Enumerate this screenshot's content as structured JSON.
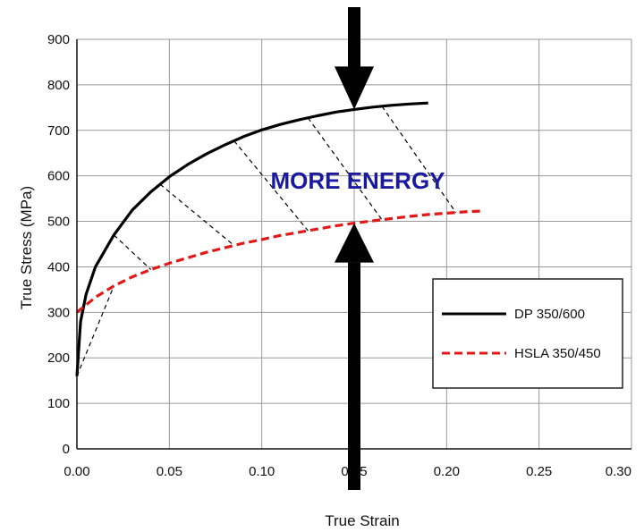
{
  "chart_data": {
    "type": "line",
    "xlabel": "True Strain",
    "ylabel": "True Stress (MPa)",
    "xlim": [
      0,
      0.3
    ],
    "ylim": [
      0,
      900
    ],
    "x_ticks": [
      "0.00",
      "0.05",
      "0.10",
      "0.15",
      "0.20",
      "0.25",
      "0.30"
    ],
    "y_ticks": [
      "0",
      "100",
      "200",
      "300",
      "400",
      "500",
      "600",
      "700",
      "800",
      "900"
    ],
    "grid": true,
    "legend_position": "bottom-right",
    "series": [
      {
        "name": "DP 350/600",
        "color": "#000000",
        "style": "solid",
        "x": [
          0.0,
          0.002,
          0.005,
          0.01,
          0.02,
          0.03,
          0.04,
          0.05,
          0.06,
          0.07,
          0.08,
          0.09,
          0.1,
          0.11,
          0.12,
          0.13,
          0.14,
          0.15,
          0.16,
          0.17,
          0.18,
          0.19
        ],
        "y": [
          160,
          280,
          340,
          400,
          470,
          525,
          565,
          598,
          625,
          648,
          668,
          686,
          701,
          713,
          723,
          732,
          740,
          746,
          751,
          755,
          758,
          760
        ]
      },
      {
        "name": "HSLA 350/450",
        "color": "#e01818",
        "style": "dashed",
        "x": [
          0.0,
          0.01,
          0.02,
          0.03,
          0.04,
          0.05,
          0.06,
          0.07,
          0.08,
          0.09,
          0.1,
          0.11,
          0.12,
          0.13,
          0.14,
          0.15,
          0.16,
          0.17,
          0.18,
          0.19,
          0.2,
          0.21,
          0.22
        ],
        "y": [
          300,
          333,
          358,
          378,
          394,
          408,
          420,
          432,
          442,
          452,
          460,
          469,
          476,
          483,
          490,
          496,
          501,
          506,
          511,
          515,
          518,
          521,
          523
        ]
      }
    ],
    "hatch_strains": [
      [
        0.0,
        0.02
      ],
      [
        0.02,
        0.04
      ],
      [
        0.045,
        0.085
      ],
      [
        0.085,
        0.125
      ],
      [
        0.125,
        0.165
      ],
      [
        0.165,
        0.205
      ]
    ],
    "annotation": {
      "text": "MORE ENERGY",
      "color": "#1a1aa0"
    },
    "arrows": {
      "strain": 0.15,
      "color": "#000000"
    }
  }
}
